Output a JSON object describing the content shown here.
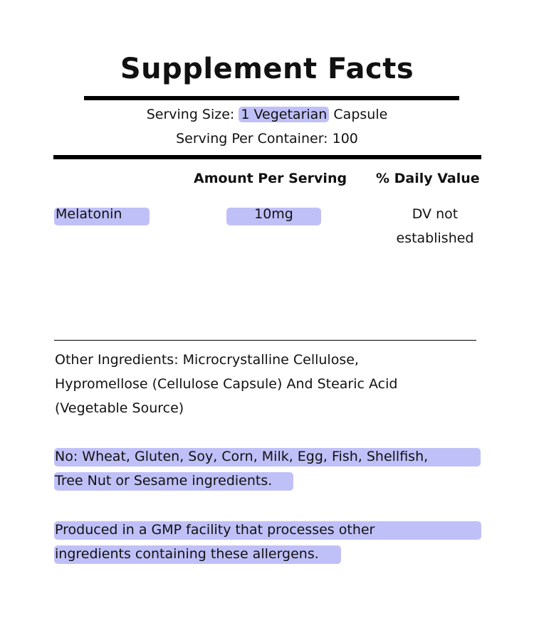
{
  "title": "Supplement Facts",
  "serving": {
    "size_label": "Serving Size:",
    "size_value": "1 Vegetarian",
    "size_unit": "Capsule",
    "per_container": "Serving Per Container: 100"
  },
  "table": {
    "headers": [
      "Amount Per Serving",
      "% Daily Value"
    ],
    "rows": [
      {
        "name": "Melatonin",
        "amount": "10mg",
        "dv_line1": "DV not",
        "dv_line2": "established"
      }
    ]
  },
  "other_ingredients": [
    "Other Ingredients: Microcrystalline Cellulose,",
    "Hypromellose (Cellulose Capsule) And Stearic Acid",
    "(Vegetable Source)"
  ],
  "allergen_free": [
    "No: Wheat, Gluten, Soy, Corn, Milk, Egg, Fish, Shellfish,",
    "Tree Nut or Sesame ingredients."
  ],
  "facility": [
    "Produced in a GMP facility that processes other",
    "ingredients containing these allergens."
  ],
  "colors": {
    "highlight": "#c0c0f8",
    "rule": "#000000"
  }
}
